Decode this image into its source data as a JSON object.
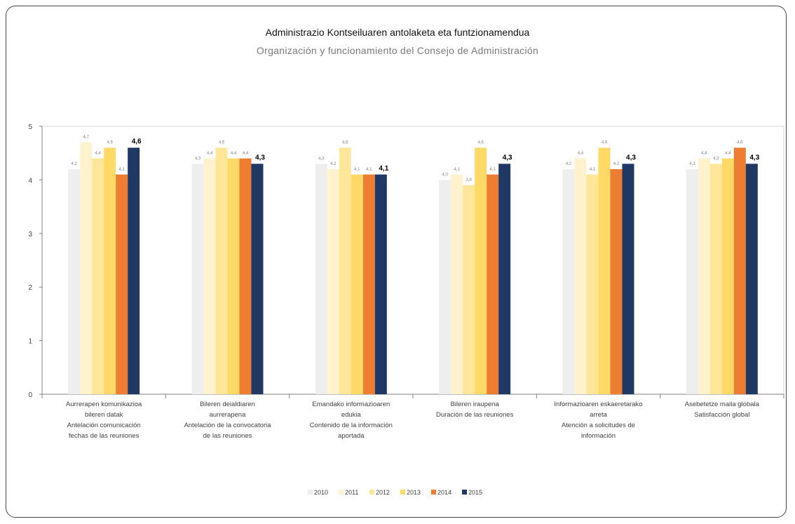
{
  "chart_data": {
    "type": "bar",
    "title": "Administrazio Kontseiluaren antolaketa eta funtzionamendua",
    "subtitle": "Organización y funcionamiento del Consejo de Administración",
    "categories": [
      [
        "Aurrerapen komunikazioa",
        "bileren datak",
        "Antelación comunicación",
        "fechas de las reuniones"
      ],
      [
        "Bileren deialdiaren",
        "aurrerapena",
        "Antelación de la convocatoria",
        "de las reuniones"
      ],
      [
        "Emandako informazioaren",
        "edukia",
        "Contenido de la información",
        "aportada"
      ],
      [
        "Bileren iraupena",
        "Duración de las reuniones"
      ],
      [
        "Informazioaren eskaeretarako",
        "arreta",
        "Atención a solicitudes de",
        "información"
      ],
      [
        "Asebetetze maila globala",
        "Satisfacción global"
      ]
    ],
    "series": [
      {
        "name": "2010",
        "color": "#eeeeee",
        "values": [
          4.2,
          4.3,
          4.3,
          4.0,
          4.2,
          4.2
        ]
      },
      {
        "name": "2011",
        "color": "#fff2cc",
        "values": [
          4.7,
          4.4,
          4.2,
          4.1,
          4.4,
          4.4
        ]
      },
      {
        "name": "2012",
        "color": "#ffe699",
        "values": [
          4.4,
          4.6,
          4.6,
          3.9,
          4.1,
          4.3
        ]
      },
      {
        "name": "2013",
        "color": "#ffd966",
        "values": [
          4.6,
          4.4,
          4.1,
          4.6,
          4.6,
          4.4
        ]
      },
      {
        "name": "2014",
        "color": "#ed7d31",
        "values": [
          4.1,
          4.4,
          4.1,
          4.1,
          4.2,
          4.6
        ]
      },
      {
        "name": "2015",
        "color": "#1f3864",
        "values": [
          4.6,
          4.3,
          4.1,
          4.3,
          4.3,
          4.3
        ]
      }
    ],
    "ylim": [
      0,
      5
    ],
    "yticks": [
      0,
      1,
      2,
      3,
      4,
      5
    ],
    "grid": false,
    "legend": "bottom"
  }
}
